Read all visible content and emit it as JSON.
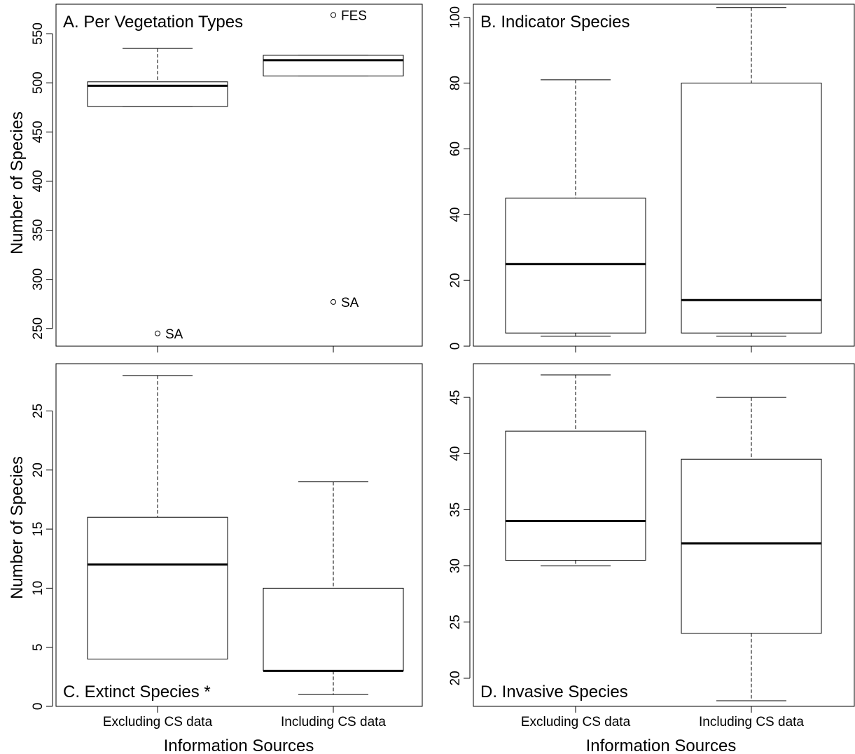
{
  "figure": {
    "xlabel": "Information Sources",
    "ylabel": "Number of Species"
  },
  "chart_data": [
    {
      "type": "boxplot",
      "title": "A. Per Vegetation Types",
      "xlabel": "",
      "ylabel": "Number of Species",
      "categories": [
        "Excluding CS data",
        "Including CS data"
      ],
      "ylim": [
        232,
        580
      ],
      "yticks": [
        250,
        300,
        350,
        400,
        450,
        500,
        550
      ],
      "boxes": [
        {
          "category": "Excluding CS data",
          "whisker_low": 476,
          "q1": 476,
          "median": 497,
          "q3": 501,
          "whisker_high": 535
        },
        {
          "category": "Including CS data",
          "whisker_low": 507,
          "q1": 507,
          "median": 523,
          "q3": 528,
          "whisker_high": 528
        }
      ],
      "outliers": [
        {
          "category": "Excluding CS data",
          "value": 245,
          "label": "SA"
        },
        {
          "category": "Including CS data",
          "value": 277,
          "label": "SA"
        },
        {
          "category": "Including CS data",
          "value": 569,
          "label": "FES"
        }
      ]
    },
    {
      "type": "boxplot",
      "title": "B. Indicator Species",
      "xlabel": "",
      "ylabel": "",
      "categories": [
        "Excluding CS data",
        "Including CS data"
      ],
      "ylim": [
        0,
        104
      ],
      "yticks": [
        0,
        20,
        40,
        60,
        80,
        100
      ],
      "boxes": [
        {
          "category": "Excluding CS data",
          "whisker_low": 3,
          "q1": 4,
          "median": 25,
          "q3": 45,
          "whisker_high": 81
        },
        {
          "category": "Including CS data",
          "whisker_low": 3,
          "q1": 4,
          "median": 14,
          "q3": 80,
          "whisker_high": 103
        }
      ],
      "outliers": []
    },
    {
      "type": "boxplot",
      "title": "C. Extinct Species *",
      "xlabel": "Information Sources",
      "ylabel": "Number of Species",
      "categories": [
        "Excluding CS data",
        "Including CS data"
      ],
      "ylim": [
        0,
        29
      ],
      "yticks": [
        0,
        5,
        10,
        15,
        20,
        25
      ],
      "boxes": [
        {
          "category": "Excluding CS data",
          "whisker_low": 4,
          "q1": 4,
          "median": 12,
          "q3": 16,
          "whisker_high": 28
        },
        {
          "category": "Including CS data",
          "whisker_low": 1,
          "q1": 3,
          "median": 3,
          "q3": 10,
          "whisker_high": 19
        }
      ],
      "outliers": []
    },
    {
      "type": "boxplot",
      "title": "D. Invasive Species",
      "xlabel": "Information Sources",
      "ylabel": "",
      "categories": [
        "Excluding CS data",
        "Including CS data"
      ],
      "ylim": [
        17.5,
        48
      ],
      "yticks": [
        20,
        25,
        30,
        35,
        40,
        45
      ],
      "boxes": [
        {
          "category": "Excluding CS data",
          "whisker_low": 30,
          "q1": 30.5,
          "median": 34,
          "q3": 42,
          "whisker_high": 47
        },
        {
          "category": "Including CS data",
          "whisker_low": 18,
          "q1": 24,
          "median": 32,
          "q3": 39.5,
          "whisker_high": 45
        }
      ],
      "outliers": []
    }
  ]
}
